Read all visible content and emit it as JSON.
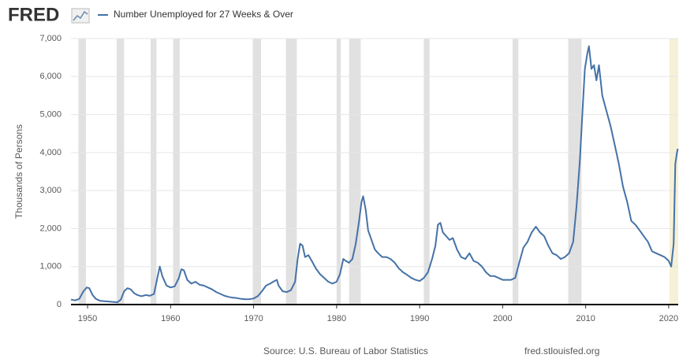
{
  "logo": "FRED",
  "chart_data": {
    "type": "line",
    "series": [
      {
        "name": "Number Unemployed for 27 Weeks & Over",
        "color": "#4572a7",
        "x": [
          1948.0,
          1948.5,
          1949.0,
          1949.5,
          1949.9,
          1950.2,
          1950.6,
          1951.0,
          1951.5,
          1952.0,
          1952.5,
          1953.0,
          1953.6,
          1954.0,
          1954.4,
          1954.8,
          1955.2,
          1955.6,
          1956.0,
          1956.5,
          1957.0,
          1957.5,
          1958.0,
          1958.4,
          1958.7,
          1959.0,
          1959.5,
          1960.0,
          1960.5,
          1961.0,
          1961.3,
          1961.6,
          1962.0,
          1962.5,
          1963.0,
          1963.5,
          1964.0,
          1964.5,
          1965.0,
          1965.5,
          1966.0,
          1966.5,
          1967.0,
          1967.5,
          1968.0,
          1968.5,
          1969.0,
          1969.5,
          1970.0,
          1970.5,
          1971.0,
          1971.5,
          1972.0,
          1972.5,
          1972.8,
          1973.0,
          1973.5,
          1974.0,
          1974.5,
          1975.0,
          1975.3,
          1975.6,
          1975.9,
          1976.2,
          1976.6,
          1977.0,
          1977.5,
          1978.0,
          1978.5,
          1979.0,
          1979.5,
          1980.0,
          1980.4,
          1980.8,
          1981.1,
          1981.5,
          1981.9,
          1982.3,
          1982.7,
          1983.0,
          1983.2,
          1983.5,
          1983.8,
          1984.2,
          1984.6,
          1985.0,
          1985.5,
          1986.0,
          1986.5,
          1987.0,
          1987.5,
          1988.0,
          1988.5,
          1989.0,
          1989.5,
          1990.0,
          1990.5,
          1991.0,
          1991.5,
          1991.9,
          1992.2,
          1992.5,
          1992.8,
          1993.2,
          1993.6,
          1994.0,
          1994.5,
          1995.0,
          1995.5,
          1996.0,
          1996.5,
          1997.0,
          1997.5,
          1998.0,
          1998.5,
          1999.0,
          1999.5,
          2000.0,
          2000.5,
          2001.0,
          2001.5,
          2002.0,
          2002.5,
          2003.0,
          2003.5,
          2004.0,
          2004.5,
          2005.0,
          2005.5,
          2006.0,
          2006.5,
          2007.0,
          2007.5,
          2008.0,
          2008.5,
          2008.9,
          2009.3,
          2009.6,
          2009.9,
          2010.2,
          2010.4,
          2010.7,
          2011.0,
          2011.3,
          2011.6,
          2012.0,
          2012.5,
          2013.0,
          2013.5,
          2014.0,
          2014.5,
          2015.0,
          2015.5,
          2016.0,
          2016.5,
          2017.0,
          2017.5,
          2018.0,
          2018.5,
          2019.0,
          2019.5,
          2020.0,
          2020.3,
          2020.6,
          2020.8,
          2021.0,
          2021.1
        ],
        "values": [
          130,
          110,
          150,
          350,
          450,
          430,
          250,
          150,
          100,
          90,
          80,
          70,
          60,
          130,
          350,
          430,
          400,
          300,
          250,
          220,
          250,
          230,
          280,
          700,
          1000,
          750,
          500,
          450,
          480,
          700,
          930,
          900,
          650,
          550,
          600,
          520,
          500,
          450,
          400,
          330,
          280,
          230,
          200,
          180,
          170,
          150,
          140,
          140,
          160,
          220,
          350,
          500,
          550,
          620,
          650,
          500,
          350,
          330,
          380,
          600,
          1200,
          1600,
          1550,
          1250,
          1300,
          1150,
          950,
          800,
          700,
          600,
          550,
          600,
          800,
          1200,
          1150,
          1100,
          1200,
          1600,
          2200,
          2700,
          2850,
          2500,
          1950,
          1700,
          1450,
          1350,
          1250,
          1250,
          1200,
          1100,
          950,
          850,
          780,
          700,
          650,
          620,
          700,
          850,
          1200,
          1550,
          2100,
          2150,
          1900,
          1800,
          1700,
          1750,
          1450,
          1250,
          1200,
          1350,
          1150,
          1100,
          1000,
          850,
          750,
          750,
          700,
          650,
          650,
          650,
          700,
          1100,
          1500,
          1650,
          1900,
          2050,
          1900,
          1800,
          1550,
          1350,
          1300,
          1200,
          1250,
          1350,
          1650,
          2600,
          3800,
          5000,
          6200,
          6600,
          6800,
          6200,
          6300,
          5900,
          6300,
          5500,
          5100,
          4700,
          4200,
          3700,
          3100,
          2700,
          2200,
          2100,
          1950,
          1800,
          1650,
          1400,
          1350,
          1300,
          1250,
          1150,
          1000,
          1600,
          3700,
          4000,
          4100
        ]
      }
    ],
    "recessions": [
      [
        1948.9,
        1949.8
      ],
      [
        1953.5,
        1954.4
      ],
      [
        1957.6,
        1958.3
      ],
      [
        1960.3,
        1961.1
      ],
      [
        1969.9,
        1970.9
      ],
      [
        1973.9,
        1975.2
      ],
      [
        1980.0,
        1980.5
      ],
      [
        1981.5,
        1982.9
      ],
      [
        1990.5,
        1991.2
      ],
      [
        2001.2,
        2001.9
      ],
      [
        2007.9,
        2009.5
      ]
    ],
    "recession_color": "#e1e1e1",
    "current_recession": [
      2020.1,
      2021.15
    ],
    "current_recession_color": "#f4f1d6",
    "ylabel": "Thousands of Persons",
    "xlim": [
      1948.0,
      2021.15
    ],
    "ylim": [
      0,
      7000
    ],
    "xticks": [
      1950,
      1960,
      1970,
      1980,
      1990,
      2000,
      2010,
      2020
    ],
    "yticks": [
      0,
      {
        "value": 1000,
        "label": "1,000"
      },
      {
        "value": 2000,
        "label": "2,000"
      },
      {
        "value": 3000,
        "label": "3,000"
      },
      {
        "value": 4000,
        "label": "4,000"
      },
      {
        "value": 5000,
        "label": "5,000"
      },
      {
        "value": 6000,
        "label": "6,000"
      },
      {
        "value": 7000,
        "label": "7,000"
      }
    ],
    "grid": true,
    "source": "Source: U.S. Bureau of Labor Statistics",
    "site": "fred.stlouisfed.org"
  }
}
